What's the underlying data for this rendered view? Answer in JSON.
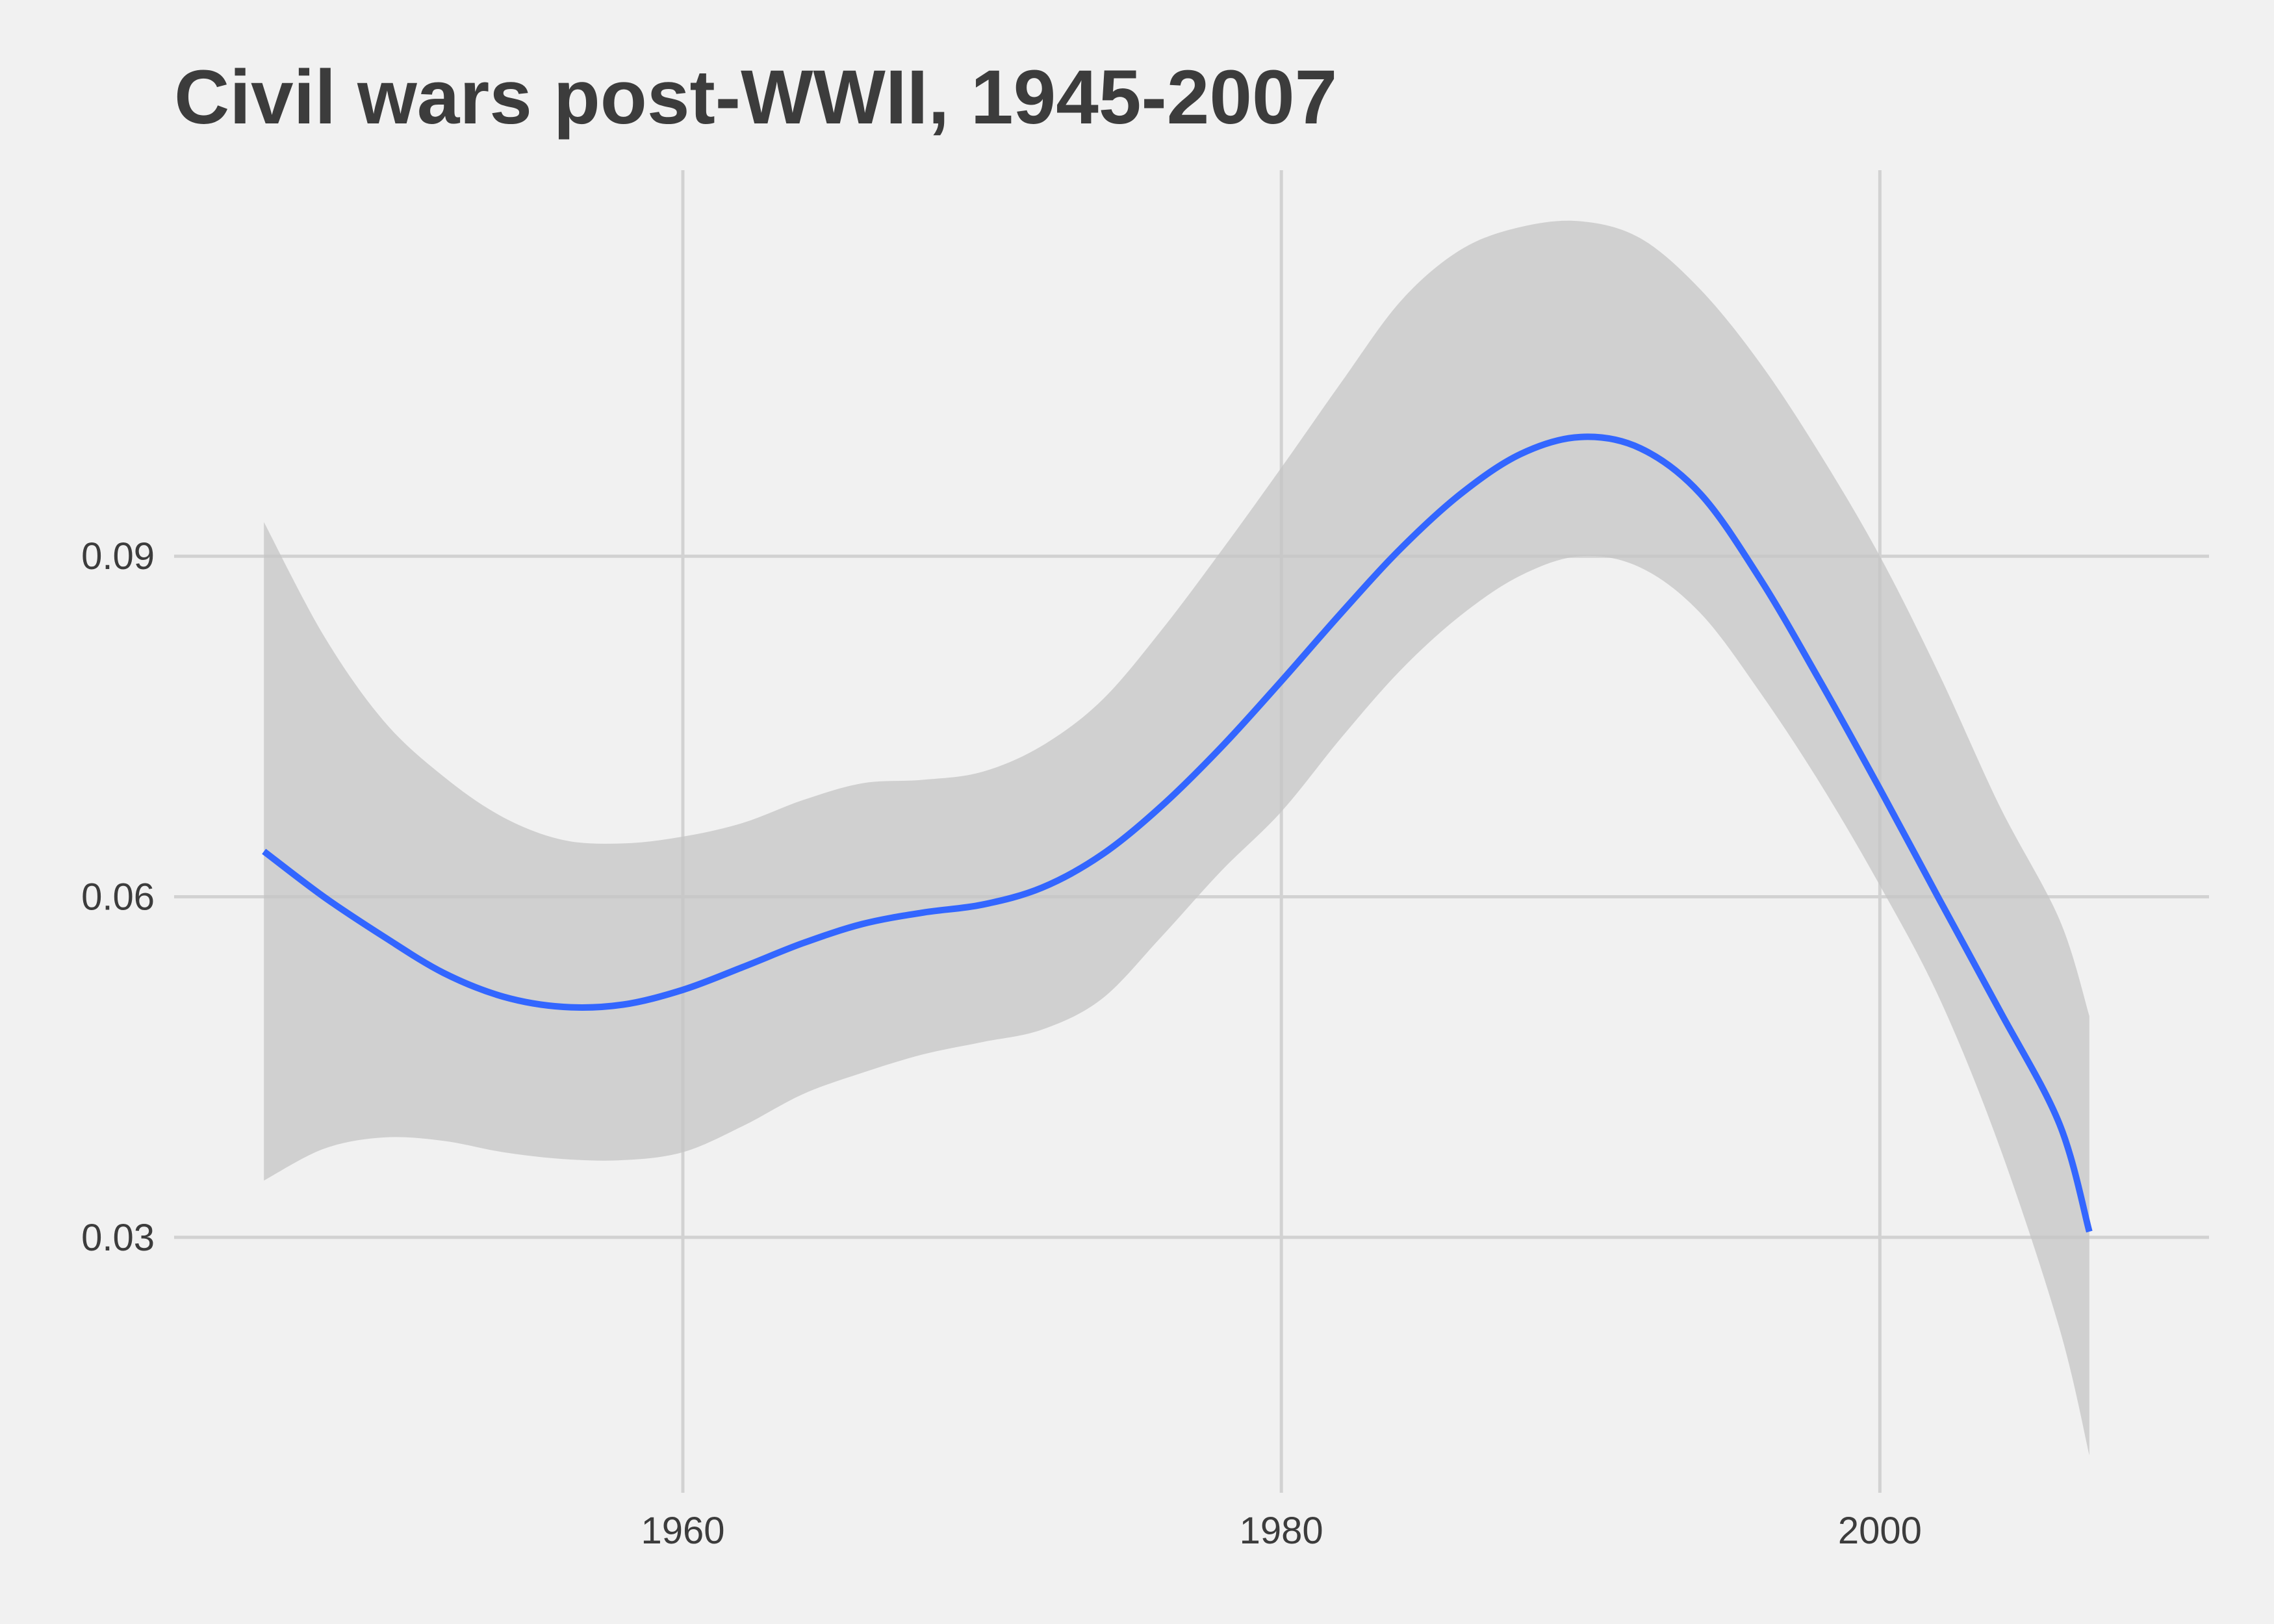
{
  "chart_data": {
    "type": "line",
    "title": "Civil wars post-WWII, 1945-2007",
    "xlabel": "",
    "ylabel": "",
    "xlim": [
      1943,
      2011
    ],
    "ylim": [
      0.0075,
      0.124
    ],
    "x_ticks": [
      1960,
      1980,
      2000
    ],
    "y_ticks": [
      0.03,
      0.06,
      0.09
    ],
    "x_tick_labels": [
      "1960",
      "1980",
      "2000"
    ],
    "y_tick_labels": [
      "0.03",
      "0.06",
      "0.09"
    ],
    "grid": true,
    "legend": "none",
    "colors": {
      "line": "#3366ff",
      "band": "#c4c4c4",
      "background": "#f1f1f1",
      "grid": "#d2d2d2"
    },
    "series": [
      {
        "x": [
          1946,
          1948,
          1950,
          1952,
          1954,
          1956,
          1958,
          1960,
          1962,
          1964,
          1966,
          1968,
          1970,
          1972,
          1974,
          1976,
          1978,
          1980,
          1982,
          1984,
          1986,
          1988,
          1990,
          1992,
          1994,
          1996,
          1998,
          2000,
          2002,
          2004,
          2006,
          2007
        ],
        "y": [
          0.064,
          0.06,
          0.0565,
          0.0533,
          0.0512,
          0.0503,
          0.0505,
          0.0518,
          0.0538,
          0.0559,
          0.0576,
          0.0586,
          0.0593,
          0.0608,
          0.0637,
          0.068,
          0.0732,
          0.079,
          0.085,
          0.0907,
          0.0955,
          0.099,
          0.1005,
          0.0995,
          0.0955,
          0.088,
          0.079,
          0.0695,
          0.0597,
          0.05,
          0.04,
          0.0305
        ],
        "ymin": [
          0.035,
          0.0378,
          0.0388,
          0.0385,
          0.0375,
          0.0369,
          0.0368,
          0.0375,
          0.0398,
          0.0426,
          0.0445,
          0.0461,
          0.0472,
          0.0483,
          0.051,
          0.0565,
          0.0623,
          0.0675,
          0.074,
          0.08,
          0.0848,
          0.0883,
          0.09,
          0.089,
          0.085,
          0.078,
          0.07,
          0.061,
          0.051,
          0.038,
          0.022,
          0.0108
        ],
        "ymax": [
          0.093,
          0.083,
          0.0755,
          0.0706,
          0.067,
          0.065,
          0.0647,
          0.0653,
          0.0665,
          0.0685,
          0.07,
          0.0703,
          0.071,
          0.0733,
          0.0773,
          0.0835,
          0.0905,
          0.0978,
          0.1053,
          0.1125,
          0.117,
          0.119,
          0.1195,
          0.118,
          0.1135,
          0.107,
          0.099,
          0.09,
          0.0795,
          0.068,
          0.058,
          0.0495
        ]
      }
    ]
  }
}
